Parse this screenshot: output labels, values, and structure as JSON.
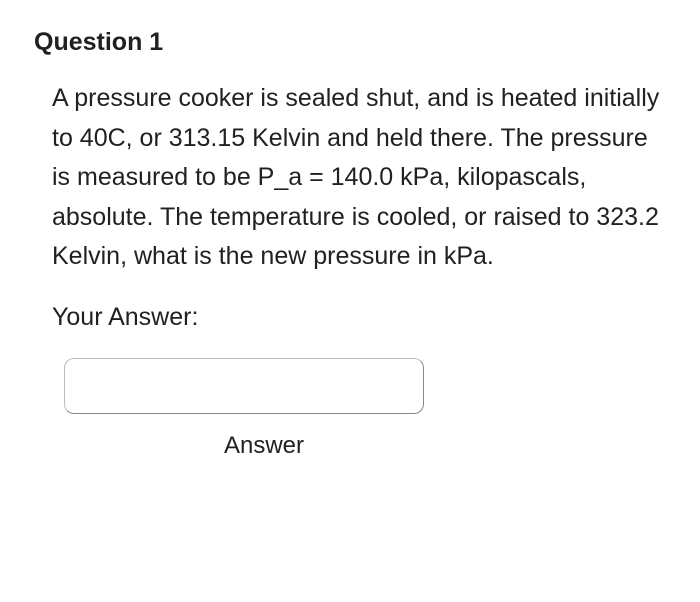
{
  "question": {
    "title": "Question 1",
    "body": "A pressure cooker is sealed shut, and is heated initially to 40C, or 313.15 Kelvin and held there.  The pressure is measured to be P_a = 140.0 kPa, kilopascals, absolute.  The temperature is cooled, or raised to 323.2 Kelvin, what is the new pressure in kPa.",
    "answer_prompt": "Your Answer:",
    "input_value": "",
    "answer_caption": "Answer"
  },
  "colors": {
    "background": "#ffffff",
    "text": "#212121",
    "input_border": "#888888"
  },
  "typography": {
    "title_fontsize": 25,
    "title_weight": 700,
    "body_fontsize": 25,
    "body_weight": 400,
    "line_height": 1.58
  }
}
